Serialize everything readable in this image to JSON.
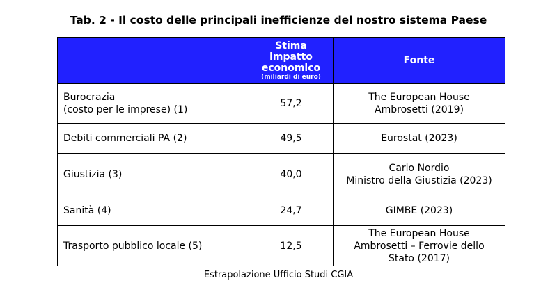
{
  "title": "Tab. 2 - Il costo delle principali inefficienze del nostro sistema Paese",
  "table": {
    "header": {
      "estimate": [
        "Stima",
        "impatto",
        "economico"
      ],
      "unit": "(miliardi di euro)",
      "source": "Fonte"
    },
    "rows": [
      {
        "item": [
          "Burocrazia",
          "(costo per le imprese) (1)"
        ],
        "estimate": "57,2",
        "source": [
          "The European House",
          "Ambrosetti (2019)"
        ]
      },
      {
        "item": [
          "Debiti commerciali PA (2)"
        ],
        "estimate": "49,5",
        "source": [
          "Eurostat (2023)"
        ]
      },
      {
        "item": [
          "Giustizia (3)"
        ],
        "estimate": "40,0",
        "source": [
          "Carlo Nordio",
          "Ministro della Giustizia (2023)"
        ]
      },
      {
        "item": [
          "Sanità (4)"
        ],
        "estimate": "24,7",
        "source": [
          "GIMBE (2023)"
        ]
      },
      {
        "item": [
          "Trasporto pubblico locale (5)"
        ],
        "estimate": "12,5",
        "source": [
          "The European House",
          "Ambrosetti – Ferrovie dello",
          "Stato (2017)"
        ]
      }
    ]
  },
  "footnote": "Estrapolazione Ufficio Studi CGIA"
}
